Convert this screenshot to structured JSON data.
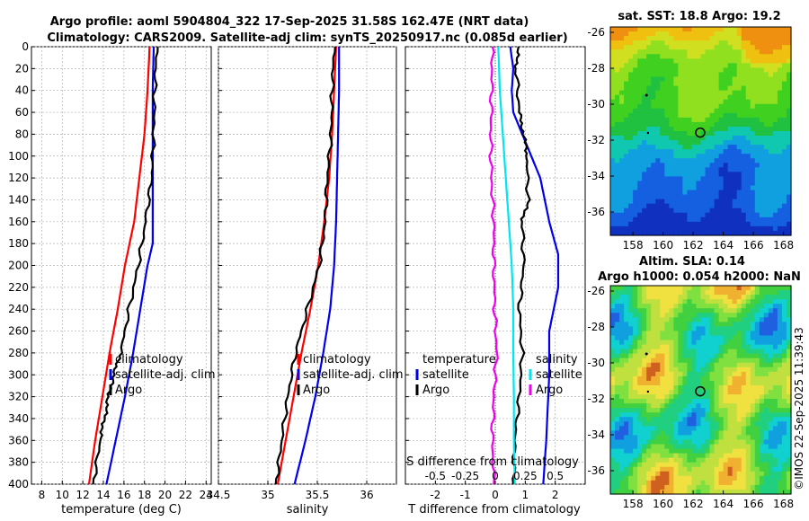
{
  "header": {
    "line1": "Argo profile: aoml 5904804_322 17-Sep-2025 31.58S 162.47E (NRT data)",
    "line2": "Climatology: CARS2009. Satellite-adj clim: synTS_20250917.nc (0.085d earlier)"
  },
  "copyright": "©IMOS 22-Sep-2025 11:39:43",
  "colors": {
    "climatology": "#ff0000",
    "satellite": "#0000ee",
    "argo": "#000000",
    "sal_satellite": "#00e5ee",
    "sal_argo": "#ee00ee"
  },
  "depth_ticks": [
    "0",
    "20",
    "40",
    "60",
    "80",
    "100",
    "120",
    "140",
    "160",
    "180",
    "200",
    "220",
    "240",
    "260",
    "280",
    "300",
    "320",
    "340",
    "360",
    "380",
    "400"
  ],
  "chart_data": [
    {
      "type": "line",
      "id": "temperature",
      "xlabel": "temperature (deg C)",
      "ylabel": "depth",
      "xlim": [
        7,
        24.5
      ],
      "ylim": [
        400,
        0
      ],
      "xticks": [
        "8",
        "10",
        "12",
        "14",
        "16",
        "18",
        "20",
        "22",
        "24"
      ],
      "xtick_values": [
        8,
        10,
        12,
        14,
        16,
        18,
        20,
        22,
        24
      ],
      "legend": {
        "labels": [
          "climatology",
          "satellite-adj. clim",
          "Argo"
        ]
      },
      "series": [
        {
          "name": "climatology",
          "depth": [
            0,
            40,
            80,
            120,
            160,
            200,
            240,
            280,
            320,
            360,
            400
          ],
          "values": [
            18.5,
            18.3,
            18.0,
            17.5,
            17.0,
            16.1,
            15.4,
            14.6,
            13.9,
            13.2,
            12.6
          ]
        },
        {
          "name": "satellite-adj. clim",
          "depth": [
            0,
            40,
            80,
            120,
            160,
            180,
            200,
            240,
            280,
            320,
            360,
            400
          ],
          "values": [
            18.9,
            18.8,
            18.8,
            18.8,
            18.8,
            18.8,
            18.3,
            17.6,
            16.9,
            16.1,
            15.2,
            14.3
          ]
        },
        {
          "name": "Argo",
          "depth": [
            0,
            40,
            80,
            120,
            160,
            200,
            240,
            280,
            300,
            320,
            340,
            360,
            400
          ],
          "values": [
            19.2,
            19.0,
            18.9,
            18.7,
            18.1,
            17.4,
            16.5,
            15.7,
            15.0,
            14.5,
            14.1,
            13.7,
            13.0
          ]
        }
      ]
    },
    {
      "type": "line",
      "id": "salinity",
      "xlabel": "salinity",
      "ylabel": "depth",
      "xlim": [
        34.5,
        36.3
      ],
      "ylim": [
        400,
        0
      ],
      "xticks": [
        "34.5",
        "35",
        "35.5",
        "36"
      ],
      "xtick_values": [
        34.5,
        35,
        35.5,
        36
      ],
      "legend": {
        "labels": [
          "climatology",
          "satellite-adj. clim",
          "Argo"
        ]
      },
      "series": [
        {
          "name": "climatology",
          "depth": [
            0,
            40,
            80,
            120,
            160,
            200,
            240,
            280,
            320,
            360,
            400
          ],
          "values": [
            35.69,
            35.67,
            35.65,
            35.62,
            35.57,
            35.51,
            35.43,
            35.34,
            35.26,
            35.18,
            35.1
          ]
        },
        {
          "name": "satellite-adj. clim",
          "depth": [
            0,
            40,
            80,
            120,
            160,
            200,
            240,
            280,
            320,
            360,
            400
          ],
          "values": [
            35.72,
            35.72,
            35.71,
            35.7,
            35.69,
            35.67,
            35.63,
            35.56,
            35.48,
            35.38,
            35.27
          ]
        },
        {
          "name": "Argo",
          "depth": [
            0,
            40,
            80,
            120,
            160,
            200,
            240,
            280,
            320,
            360,
            400
          ],
          "values": [
            35.67,
            35.65,
            35.64,
            35.6,
            35.58,
            35.52,
            35.4,
            35.28,
            35.2,
            35.14,
            35.08
          ]
        }
      ]
    },
    {
      "type": "line",
      "id": "difference",
      "xlabel": "T difference from climatology",
      "xlabel_top": "S difference from climatology",
      "ylabel": "depth",
      "xlim": [
        -3,
        3
      ],
      "ylim": [
        400,
        0
      ],
      "xticks": [
        "-2",
        "-1",
        "0",
        "1",
        "2"
      ],
      "xtick_values": [
        -2,
        -1,
        0,
        1,
        2
      ],
      "sticks": [
        "-0.5",
        "-0.25",
        "0",
        "0.25",
        "0.5"
      ],
      "stick_values": [
        -2,
        -1,
        0,
        1,
        2
      ],
      "legend": {
        "temperature_title": "temperature",
        "salinity_title": "salinity",
        "labels": [
          "satellite",
          "Argo",
          "satellite",
          "Argo"
        ]
      },
      "series": [
        {
          "name": "T satellite",
          "depth": [
            0,
            20,
            40,
            60,
            80,
            100,
            120,
            160,
            180,
            190,
            220,
            260,
            300,
            360,
            400
          ],
          "values": [
            0.5,
            0.6,
            0.55,
            0.6,
            0.9,
            1.2,
            1.5,
            1.8,
            2.0,
            2.1,
            2.1,
            1.8,
            1.8,
            1.7,
            1.6
          ]
        },
        {
          "name": "T Argo",
          "depth": [
            0,
            20,
            60,
            80,
            100,
            140,
            160,
            200,
            240,
            280,
            320,
            360,
            400
          ],
          "values": [
            0.75,
            0.7,
            0.8,
            0.95,
            1.05,
            1.1,
            0.9,
            0.95,
            0.8,
            0.9,
            0.8,
            0.65,
            0.6
          ]
        },
        {
          "name": "S satellite",
          "depth": [
            0,
            40,
            80,
            120,
            160,
            200,
            240,
            280,
            320,
            360,
            400
          ],
          "values": [
            0.1,
            0.15,
            0.25,
            0.35,
            0.45,
            0.55,
            0.6,
            0.6,
            0.62,
            0.62,
            0.65
          ]
        },
        {
          "name": "S Argo",
          "depth": [
            0,
            40,
            80,
            120,
            160,
            200,
            240,
            280,
            320,
            360,
            400
          ],
          "values": [
            -0.1,
            -0.12,
            -0.15,
            -0.13,
            -0.05,
            -0.05,
            -0.02,
            0.05,
            -0.05,
            -0.1,
            -0.05
          ]
        }
      ]
    },
    {
      "type": "heatmap",
      "id": "sst_map",
      "title": "sat. SST: 18.8 Argo: 19.2",
      "xticks": [
        "158",
        "160",
        "162",
        "164",
        "166",
        "168"
      ],
      "xtick_values": [
        158,
        160,
        162,
        164,
        166,
        168
      ],
      "yticks": [
        "-26",
        "-28",
        "-30",
        "-32",
        "-34",
        "-36"
      ],
      "ytick_values": [
        -26,
        -28,
        -30,
        -32,
        -34,
        -36
      ],
      "xlim": [
        156.5,
        168.5
      ],
      "ylim": [
        -37.3,
        -25.7
      ],
      "marker": {
        "lon": 162.47,
        "lat": -31.58
      }
    },
    {
      "type": "heatmap",
      "id": "sla_map",
      "title_line1": "Altim. SLA: 0.14",
      "title_line2": "Argo h1000: 0.054 h2000: NaN",
      "xticks": [
        "158",
        "160",
        "162",
        "164",
        "166",
        "168"
      ],
      "xtick_values": [
        158,
        160,
        162,
        164,
        166,
        168
      ],
      "yticks": [
        "-26",
        "-28",
        "-30",
        "-32",
        "-34",
        "-36"
      ],
      "ytick_values": [
        -26,
        -28,
        -30,
        -32,
        -34,
        -36
      ],
      "xlim": [
        156.5,
        168.5
      ],
      "ylim": [
        -37.3,
        -25.7
      ],
      "marker": {
        "lon": 162.47,
        "lat": -31.58
      }
    }
  ]
}
